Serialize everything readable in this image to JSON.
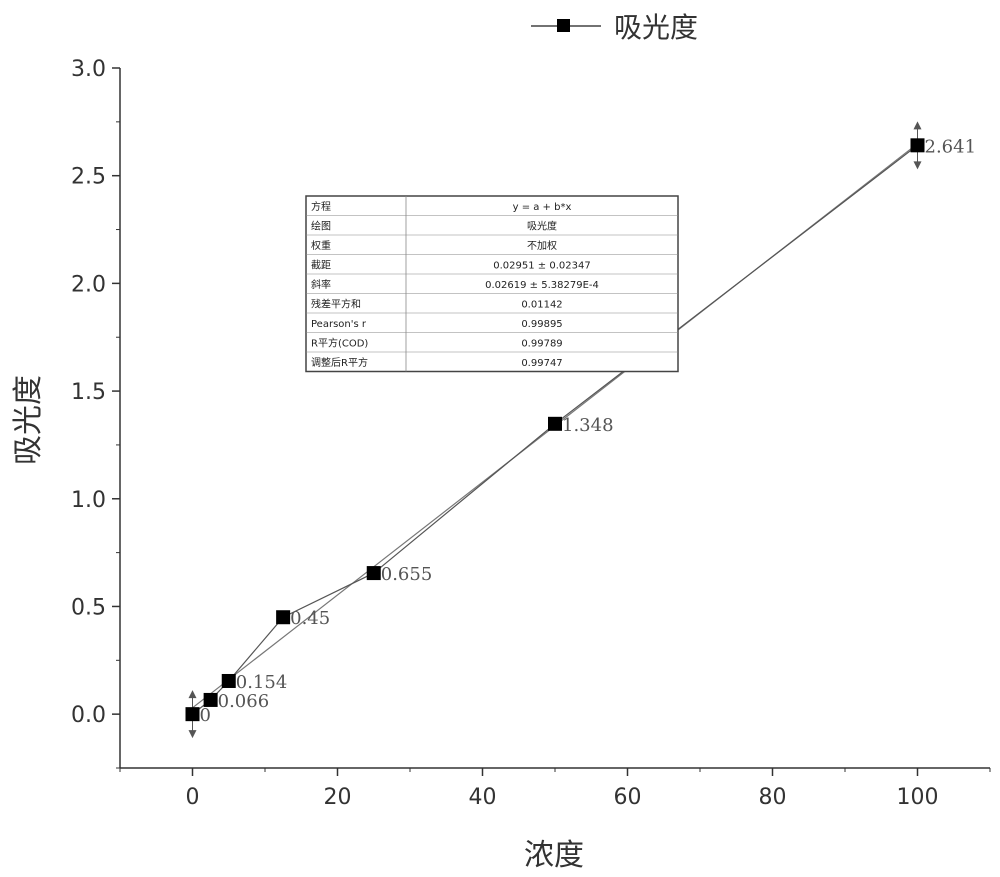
{
  "chart_data": {
    "type": "line",
    "title": "",
    "xlabel": "浓度",
    "ylabel": "吸光度",
    "xlim": [
      -10,
      110
    ],
    "ylim": [
      -0.25,
      3.0
    ],
    "x_ticks": [
      0,
      20,
      40,
      60,
      80,
      100
    ],
    "y_ticks": [
      0.0,
      0.5,
      1.0,
      1.5,
      2.0,
      2.5,
      3.0
    ],
    "x_tick_labels": [
      "0",
      "20",
      "40",
      "60",
      "80",
      "100"
    ],
    "y_tick_labels": [
      "0.0",
      "0.5",
      "1.0",
      "1.5",
      "2.0",
      "2.5",
      "3.0"
    ],
    "legend": {
      "position": "top-center",
      "entries": [
        "吸光度"
      ]
    },
    "series": [
      {
        "name": "吸光度",
        "x": [
          0,
          2.5,
          5,
          12.5,
          25,
          50,
          100
        ],
        "y": [
          0,
          0.066,
          0.154,
          0.45,
          0.655,
          1.348,
          2.641
        ],
        "labels": [
          "0",
          "0.066",
          "0.154",
          "0.45",
          "0.655",
          "1.348",
          "2.641"
        ]
      }
    ],
    "fit": {
      "intercept": 0.02951,
      "slope": 0.02619,
      "x_range": [
        0,
        100
      ]
    },
    "stats_table": [
      {
        "key": "方程",
        "value": "y = a + b*x"
      },
      {
        "key": "绘图",
        "value": "吸光度"
      },
      {
        "key": "权重",
        "value": "不加权"
      },
      {
        "key": "截距",
        "value": "0.02951 ± 0.02347"
      },
      {
        "key": "斜率",
        "value": "0.02619 ± 5.38279E-4"
      },
      {
        "key": "残差平方和",
        "value": "0.01142"
      },
      {
        "key": "Pearson's r",
        "value": "0.99895"
      },
      {
        "key": "R平方(COD)",
        "value": "0.99789"
      },
      {
        "key": "调整后R平方",
        "value": "0.99747"
      }
    ]
  }
}
